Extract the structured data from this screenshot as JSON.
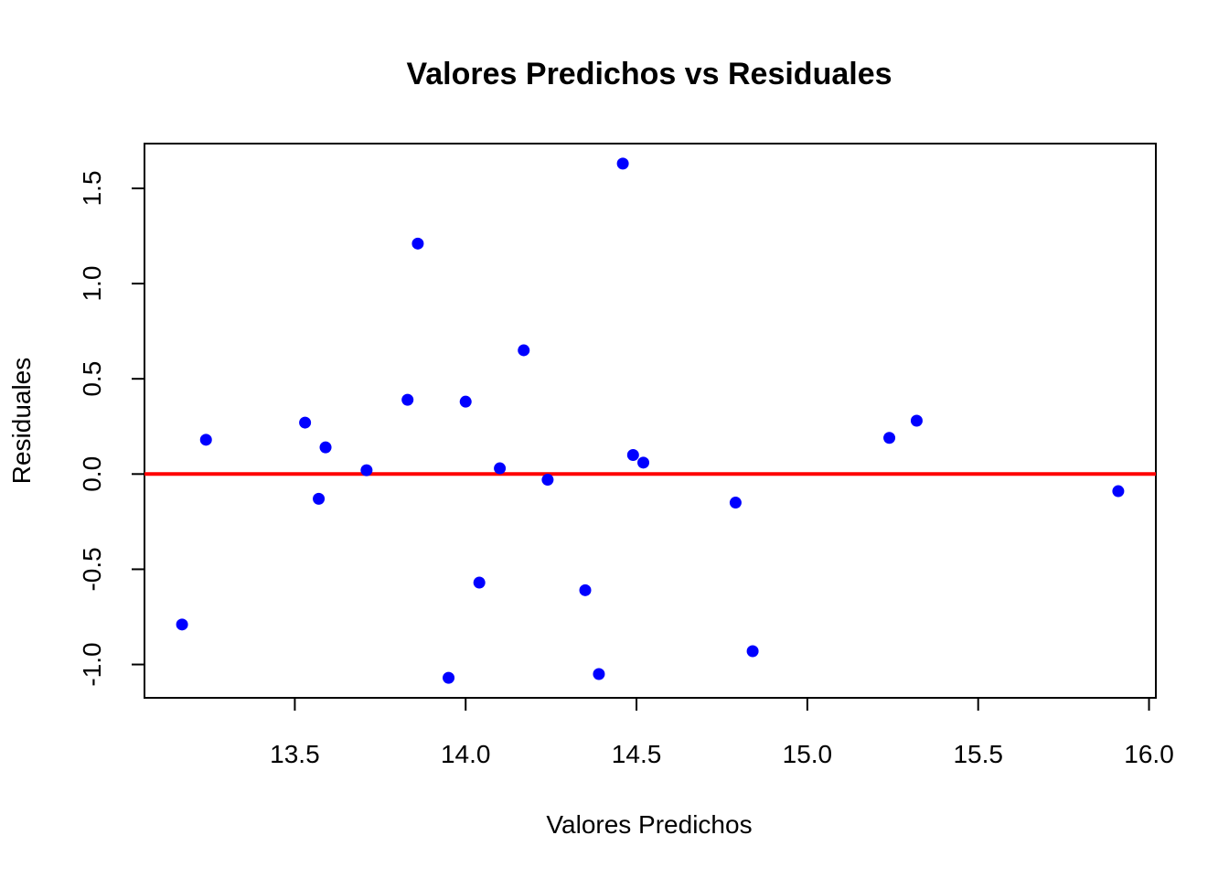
{
  "chart_data": {
    "type": "scatter",
    "title": "Valores Predichos vs Residuales",
    "xlabel": "Valores Predichos",
    "ylabel": "Residuales",
    "xlim": [
      13.06,
      16.02
    ],
    "ylim": [
      -1.175,
      1.735
    ],
    "x_ticks": [
      13.5,
      14.0,
      14.5,
      15.0,
      15.5,
      16.0
    ],
    "x_tick_labels": [
      "13.5",
      "14.0",
      "14.5",
      "15.0",
      "15.5",
      "16.0"
    ],
    "y_ticks": [
      -1.0,
      -0.5,
      0.0,
      0.5,
      1.0,
      1.5
    ],
    "y_tick_labels": [
      "-1.0",
      "-0.5",
      "0.0",
      "0.5",
      "1.0",
      "1.5"
    ],
    "reference_line": {
      "y": 0,
      "color": "#ff0000"
    },
    "point_color": "#0000ff",
    "grid": false,
    "points": [
      {
        "x": 13.17,
        "y": -0.79
      },
      {
        "x": 13.24,
        "y": 0.18
      },
      {
        "x": 13.53,
        "y": 0.27
      },
      {
        "x": 13.57,
        "y": -0.13
      },
      {
        "x": 13.59,
        "y": 0.14
      },
      {
        "x": 13.71,
        "y": 0.02
      },
      {
        "x": 13.83,
        "y": 0.39
      },
      {
        "x": 13.86,
        "y": 1.21
      },
      {
        "x": 13.95,
        "y": -1.07
      },
      {
        "x": 14.0,
        "y": 0.38
      },
      {
        "x": 14.04,
        "y": -0.57
      },
      {
        "x": 14.1,
        "y": 0.03
      },
      {
        "x": 14.17,
        "y": 0.65
      },
      {
        "x": 14.24,
        "y": -0.03
      },
      {
        "x": 14.35,
        "y": -0.61
      },
      {
        "x": 14.39,
        "y": -1.05
      },
      {
        "x": 14.46,
        "y": 1.63
      },
      {
        "x": 14.49,
        "y": 0.1
      },
      {
        "x": 14.52,
        "y": 0.06
      },
      {
        "x": 14.79,
        "y": -0.15
      },
      {
        "x": 14.84,
        "y": -0.93
      },
      {
        "x": 15.24,
        "y": 0.19
      },
      {
        "x": 15.32,
        "y": 0.28
      },
      {
        "x": 15.91,
        "y": -0.09
      }
    ]
  }
}
